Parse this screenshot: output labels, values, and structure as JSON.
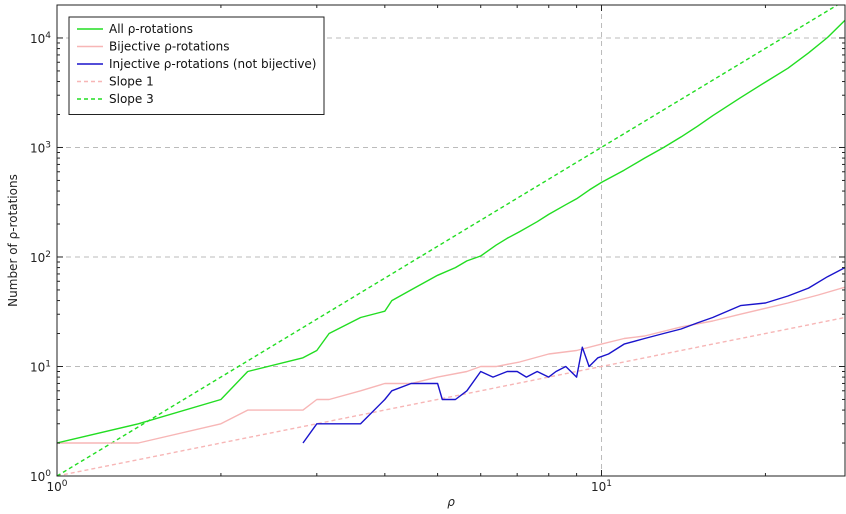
{
  "chart_data": {
    "type": "line",
    "xscale": "log",
    "yscale": "log",
    "xlim": [
      1,
      28
    ],
    "ylim": [
      1,
      20000
    ],
    "grid": true,
    "xlabel": "ρ",
    "ylabel": "Number of ρ-rotations",
    "legend_position": "top-left",
    "x_ticks": [
      {
        "base": "10",
        "exp": "0"
      },
      {
        "base": "10",
        "exp": "1"
      }
    ],
    "y_ticks": [
      {
        "base": "10",
        "exp": "0"
      },
      {
        "base": "10",
        "exp": "1"
      },
      {
        "base": "10",
        "exp": "2"
      },
      {
        "base": "10",
        "exp": "3"
      },
      {
        "base": "10",
        "exp": "4"
      }
    ],
    "series": [
      {
        "name": "All ρ-rotations",
        "color": "#22dd22",
        "dash": "solid",
        "x": [
          1,
          1.41,
          2,
          2.24,
          2.83,
          3,
          3.16,
          3.61,
          4,
          4.12,
          4.47,
          5,
          5.39,
          5.66,
          6,
          6.4,
          6.71,
          7.07,
          7.62,
          8,
          8.6,
          9,
          9.5,
          10,
          11,
          12,
          13,
          14,
          15,
          16,
          18,
          20,
          22,
          24,
          26,
          28
        ],
        "y": [
          2,
          3,
          5,
          9,
          12,
          14,
          20,
          28,
          32,
          40,
          50,
          68,
          80,
          92,
          102,
          128,
          148,
          170,
          210,
          245,
          300,
          340,
          410,
          480,
          620,
          800,
          1000,
          1250,
          1560,
          1950,
          2850,
          3950,
          5300,
          7300,
          10100,
          14500
        ]
      },
      {
        "name": "Bijective ρ-rotations",
        "color": "#f7b6b6",
        "dash": "solid",
        "x": [
          1,
          1.41,
          2,
          2.24,
          2.83,
          3,
          3.16,
          3.61,
          4,
          4.47,
          5,
          5.66,
          6,
          6.4,
          7.07,
          8,
          9,
          10,
          11,
          12,
          14,
          16,
          18,
          20,
          22,
          25,
          28
        ],
        "y": [
          2,
          2,
          3,
          4,
          4,
          5,
          5,
          6,
          7,
          7,
          8,
          9,
          10,
          10,
          11,
          13,
          14,
          16,
          18,
          19,
          23,
          26,
          30,
          34,
          38,
          45,
          53
        ]
      },
      {
        "name": "Injective ρ-rotations (not bijective)",
        "color": "#1a14cc",
        "dash": "solid",
        "x": [
          2.83,
          3,
          3.16,
          3.61,
          4,
          4.12,
          4.47,
          5,
          5.1,
          5.39,
          5.66,
          6,
          6.32,
          6.71,
          7,
          7.28,
          7.62,
          8,
          8.25,
          8.6,
          9,
          9.22,
          9.49,
          9.85,
          10.3,
          11,
          12,
          13,
          14,
          15,
          16,
          18,
          20,
          22,
          24,
          26,
          28
        ],
        "y": [
          2,
          3,
          3,
          3,
          5,
          6,
          7,
          7,
          5,
          5,
          6,
          9,
          8,
          9,
          9,
          8,
          9,
          8,
          9,
          10,
          8,
          15,
          10,
          12,
          13,
          16,
          18,
          20,
          22,
          25,
          28,
          36,
          38,
          44,
          52,
          66,
          80
        ]
      },
      {
        "name": "Slope 1",
        "color": "#f7b6b6",
        "dash": "dashed",
        "x": [
          1,
          28
        ],
        "y": [
          1,
          28
        ]
      },
      {
        "name": "Slope 3",
        "color": "#22dd22",
        "dash": "dashed",
        "x": [
          1,
          27.1
        ],
        "y": [
          1,
          20000
        ]
      }
    ]
  }
}
